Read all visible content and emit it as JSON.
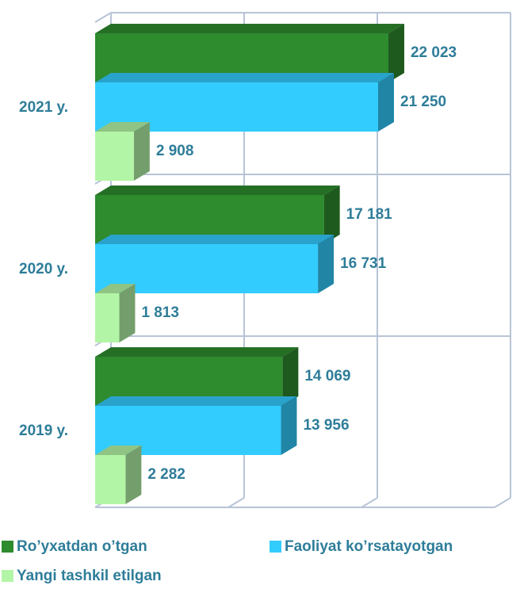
{
  "chart_data": {
    "type": "bar3d_horizontal",
    "categories": [
      "2021 y.",
      "2020 y.",
      "2019 y."
    ],
    "series": [
      {
        "name": "Ro’yxatdan o’tgan",
        "color": "#2e8b2e",
        "values": [
          22023,
          17181,
          14069
        ],
        "value_labels": [
          "22 023",
          "17 181",
          "14 069"
        ]
      },
      {
        "name": "Faoliyat ko’rsatayotgan",
        "color": "#33ccff",
        "values": [
          21250,
          16731,
          13956
        ],
        "value_labels": [
          "21 250",
          "16 731",
          "13 956"
        ]
      },
      {
        "name": "Yangi tashkil etilgan",
        "color": "#b3f5a6",
        "values": [
          2908,
          1813,
          2282
        ],
        "value_labels": [
          "2 908",
          "1 813",
          "2 282"
        ]
      }
    ],
    "xlim": [
      0,
      30000
    ],
    "xticks": [
      0,
      10000,
      20000,
      30000
    ],
    "grid": true
  }
}
